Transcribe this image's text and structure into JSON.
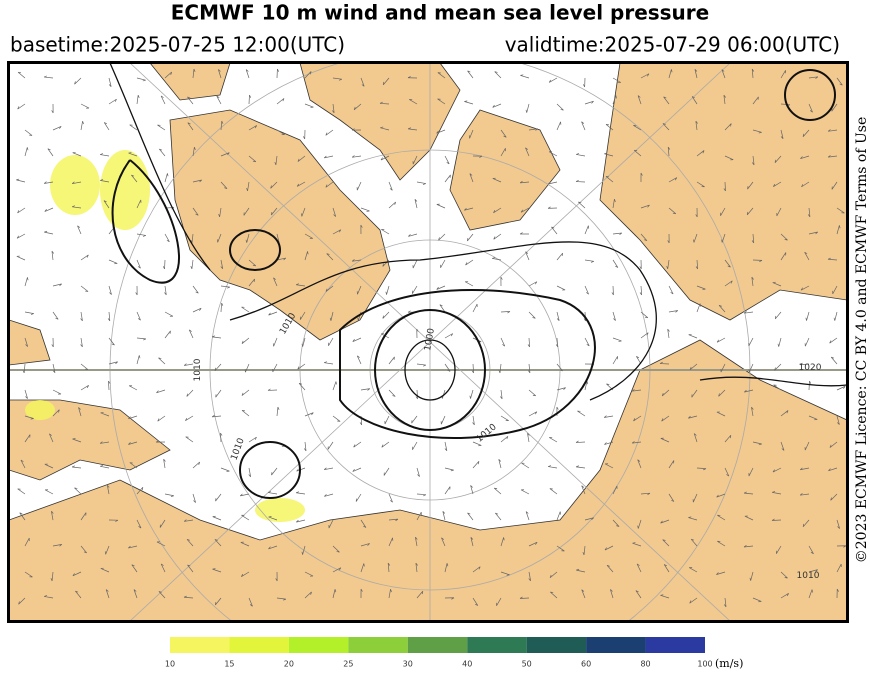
{
  "header": {
    "title": "ECMWF 10 m wind and mean sea level pressure",
    "basetime": "basetime:2025-07-25 12:00(UTC)",
    "validtime": "validtime:2025-07-29 06:00(UTC)"
  },
  "licence": "©2023 ECMWF Licence: CC BY 4.0 and ECMWF Terms of Use",
  "contour_labels": [
    "1010",
    "1010",
    "1010",
    "1000",
    "1020",
    "1010",
    "1010"
  ],
  "colorbar": {
    "bounds": [
      10,
      15,
      20,
      25,
      30,
      40,
      50,
      60,
      80,
      100
    ],
    "colors": [
      "#f5f560",
      "#e2f53a",
      "#b4f02a",
      "#8ccf3a",
      "#5f9f45",
      "#2e7a55",
      "#1e5c55",
      "#1a3f70",
      "#2a3aa0"
    ],
    "unit": "(m/s)"
  }
}
